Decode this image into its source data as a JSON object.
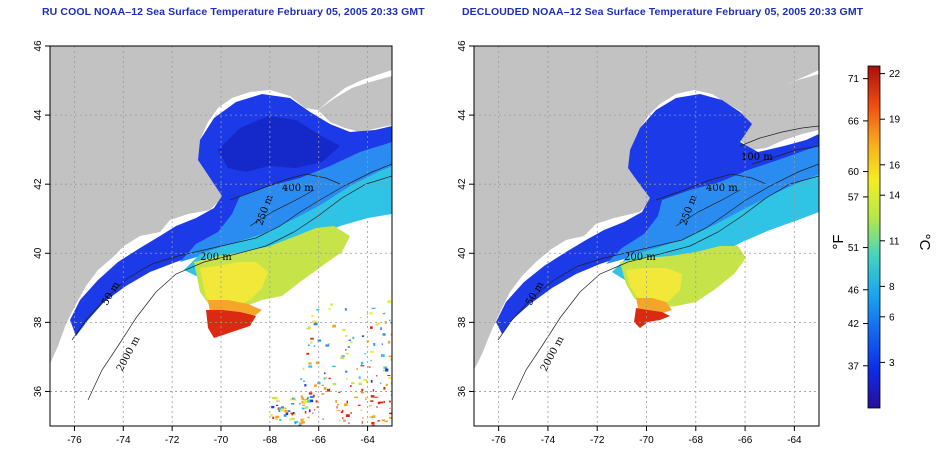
{
  "panels": [
    {
      "id": "left",
      "title": "RU COOL NOAA–12 Sea Surface Temperature February 05, 2005 20:33 GMT",
      "contours": [
        "400 m",
        "200 m",
        "50 m",
        "2000 m",
        "250 m"
      ]
    },
    {
      "id": "right",
      "title": "DECLOUDED NOAA–12 Sea Surface Temperature February 05, 2005 20:33 GMT",
      "contours": [
        "100 m",
        "400 m",
        "200 m",
        "50 m",
        "2000 m",
        "250 m"
      ]
    }
  ],
  "axes": {
    "x_ticks": [
      "-76",
      "-74",
      "-72",
      "-70",
      "-68",
      "-66",
      "-64"
    ],
    "x_values": [
      -76,
      -74,
      -72,
      -70,
      -68,
      -66,
      -64
    ],
    "y_ticks": [
      "46",
      "44",
      "42",
      "40",
      "38",
      "36"
    ],
    "y_values": [
      46,
      44,
      42,
      40,
      38,
      36
    ],
    "lon_range": [
      -77,
      -63
    ],
    "lat_range": [
      35,
      46
    ]
  },
  "colorbar": {
    "fahrenheit_label": "°F",
    "celsius_label": "°C",
    "fahrenheit_ticks": [
      "71",
      "66",
      "60",
      "57",
      "51",
      "46",
      "42",
      "37"
    ],
    "fahrenheit_values": [
      71,
      66,
      60,
      57,
      51,
      46,
      42,
      37
    ],
    "celsius_ticks": [
      "22",
      "19",
      "16",
      "14",
      "11",
      "8",
      "6",
      "3"
    ],
    "celsius_values": [
      22,
      19,
      16,
      14,
      11,
      8,
      6,
      3
    ],
    "range_c": [
      0,
      22.5
    ],
    "colors": [
      "#2a0d9c",
      "#0a2de6",
      "#1466f0",
      "#19a6ee",
      "#43d3c0",
      "#b5e84a",
      "#f4ee22",
      "#f7a91c",
      "#ee4a12",
      "#a80f0b"
    ]
  },
  "colors": {
    "land": "#c2c2c2",
    "cold": "#1c3ae8",
    "deep_blue": "#1528c9",
    "mid_blue": "#2a8cf0",
    "cyan": "#2fc4e6",
    "yellow_green": "#c6e44a",
    "yellow": "#f2e83a",
    "orange": "#f5a62a",
    "red": "#dc2a12",
    "grid": "#9a9a9a"
  }
}
